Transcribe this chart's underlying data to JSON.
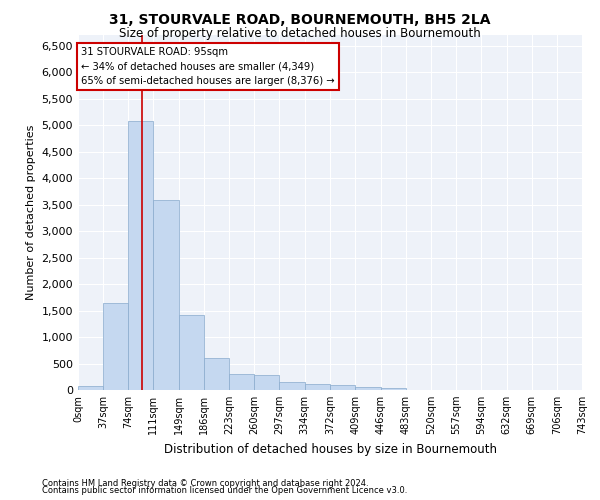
{
  "title": "31, STOURVALE ROAD, BOURNEMOUTH, BH5 2LA",
  "subtitle": "Size of property relative to detached houses in Bournemouth",
  "xlabel": "Distribution of detached houses by size in Bournemouth",
  "ylabel": "Number of detached properties",
  "footnote1": "Contains HM Land Registry data © Crown copyright and database right 2024.",
  "footnote2": "Contains public sector information licensed under the Open Government Licence v3.0.",
  "annotation_title": "31 STOURVALE ROAD: 95sqm",
  "annotation_line1": "← 34% of detached houses are smaller (4,349)",
  "annotation_line2": "65% of semi-detached houses are larger (8,376) →",
  "property_size": 95,
  "bar_color": "#c5d8f0",
  "bar_edge_color": "#88aacc",
  "vline_color": "#cc0000",
  "annotation_box_edgecolor": "#cc0000",
  "background_color": "#eef2f9",
  "grid_color": "#ffffff",
  "bin_edges": [
    0,
    37,
    74,
    111,
    149,
    186,
    223,
    260,
    297,
    334,
    372,
    409,
    446,
    483,
    520,
    557,
    594,
    632,
    669,
    706,
    743
  ],
  "bin_counts": [
    70,
    1640,
    5080,
    3580,
    1410,
    610,
    300,
    290,
    155,
    120,
    90,
    55,
    30,
    0,
    0,
    0,
    0,
    0,
    0,
    0
  ],
  "ylim": [
    0,
    6700
  ],
  "yticks": [
    0,
    500,
    1000,
    1500,
    2000,
    2500,
    3000,
    3500,
    4000,
    4500,
    5000,
    5500,
    6000,
    6500
  ]
}
